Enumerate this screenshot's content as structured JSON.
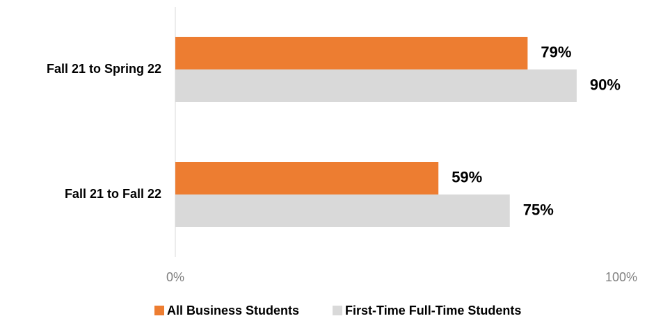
{
  "chart_data": {
    "type": "bar",
    "orientation": "horizontal",
    "categories": [
      "Fall 21 to Spring 22",
      "Fall 21 to Fall 22"
    ],
    "series": [
      {
        "name": "All Business Students",
        "color": "#ed7d31",
        "values": [
          79,
          59
        ],
        "value_labels": [
          "79%",
          "59%"
        ]
      },
      {
        "name": "First-Time Full-Time Students",
        "color": "#d9d9d9",
        "values": [
          90,
          75
        ],
        "value_labels": [
          "90%",
          "75%"
        ]
      }
    ],
    "xlim": [
      0,
      100
    ],
    "xticks": [
      {
        "value": 0,
        "label": "0%"
      },
      {
        "value": 100,
        "label": "100%"
      }
    ],
    "grid": false,
    "legend": "bottom"
  }
}
